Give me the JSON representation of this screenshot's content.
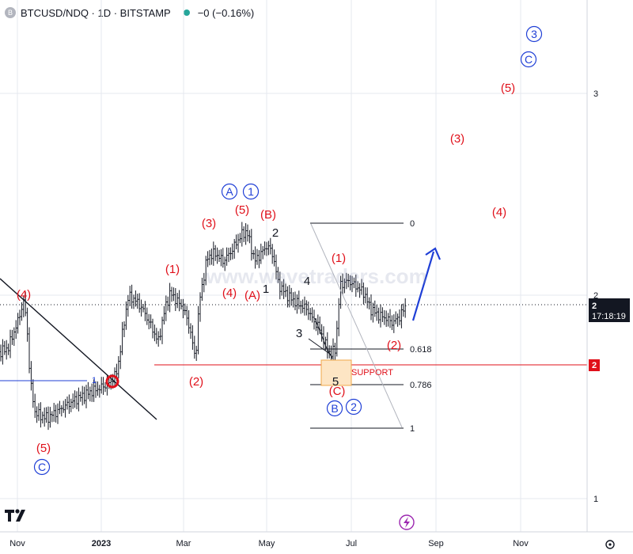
{
  "header": {
    "symbol": "BTCUSD/NDQ · 1D · BITSTAMP",
    "logo_letter": "B",
    "change": "−0 (−0.16%)"
  },
  "colors": {
    "red": "#e0101a",
    "blue": "#1f3fd6",
    "black": "#131722",
    "grid": "#e6e8ef",
    "support_fill": "#fde5c4",
    "support_border": "#f0a848",
    "price_tag": "#131722",
    "red_tag": "#e0101a"
  },
  "chart_data": {
    "type": "candlestick",
    "title": "BTCUSD/NDQ · 1D · BITSTAMP",
    "xlabel": "",
    "ylabel": "",
    "x_ticks": [
      "Nov",
      "2023",
      "Mar",
      "May",
      "Jul",
      "Sep",
      "Nov"
    ],
    "y_ticks": [
      "3",
      "2",
      "1"
    ],
    "fib_levels": [
      {
        "ratio": "0"
      },
      {
        "ratio": "0.618"
      },
      {
        "ratio": "0.786"
      },
      {
        "ratio": "1"
      }
    ],
    "support_label": "SUPPORT",
    "price_tag": {
      "value": "2",
      "countdown": "17:18:19"
    },
    "support_tag": "2",
    "trendline_label": "1",
    "wave_labels": [
      {
        "text": "(4)",
        "color": "red"
      },
      {
        "text": "(5)",
        "color": "red"
      },
      {
        "text": "C",
        "color": "blue",
        "circled": true
      },
      {
        "text": "(1)",
        "color": "red"
      },
      {
        "text": "(2)",
        "color": "red"
      },
      {
        "text": "(3)",
        "color": "red"
      },
      {
        "text": "(4)",
        "color": "red"
      },
      {
        "text": "(5)",
        "color": "red"
      },
      {
        "text": "A",
        "color": "blue",
        "circled": true
      },
      {
        "text": "1",
        "color": "blue",
        "circled": true
      },
      {
        "text": "(A)",
        "color": "red"
      },
      {
        "text": "(B)",
        "color": "red"
      },
      {
        "text": "1",
        "color": "black"
      },
      {
        "text": "2",
        "color": "black"
      },
      {
        "text": "3",
        "color": "black"
      },
      {
        "text": "4",
        "color": "black"
      },
      {
        "text": "5",
        "color": "black"
      },
      {
        "text": "(C)",
        "color": "red"
      },
      {
        "text": "B",
        "color": "blue",
        "circled": true
      },
      {
        "text": "2",
        "color": "blue",
        "circled": true
      },
      {
        "text": "(1)",
        "color": "red"
      },
      {
        "text": "(2)",
        "color": "red"
      },
      {
        "text": "(3)",
        "color": "red"
      },
      {
        "text": "(4)",
        "color": "red"
      },
      {
        "text": "(5)",
        "color": "red"
      },
      {
        "text": "C",
        "color": "blue",
        "circled": true
      },
      {
        "text": "3",
        "color": "blue",
        "circled": true
      }
    ],
    "watermark": "www.wavetraders.com"
  }
}
